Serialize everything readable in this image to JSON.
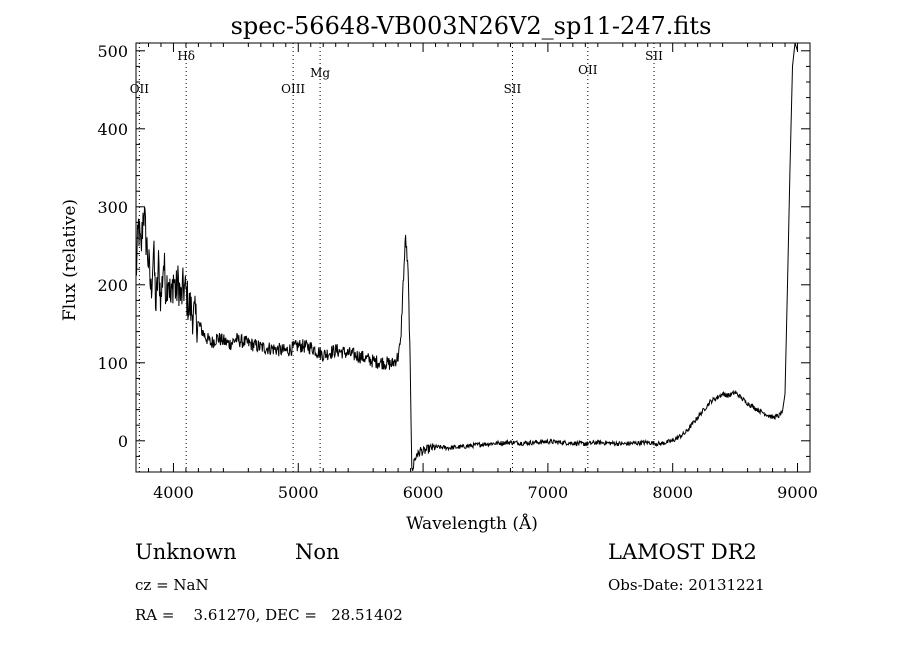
{
  "chart_data": {
    "type": "line",
    "title": "spec-56648-VB003N26V2_sp11-247.fits",
    "xlabel": "Wavelength (Å)",
    "ylabel": "Flux (relative)",
    "xlim": [
      3700,
      9100
    ],
    "ylim": [
      -40,
      510
    ],
    "xticks": [
      4000,
      5000,
      6000,
      7000,
      8000,
      9000
    ],
    "yticks": [
      0,
      100,
      200,
      300,
      400,
      500
    ],
    "grid": false,
    "line_color": "#000000",
    "lines": [
      {
        "label": "OII",
        "x": 3727
      },
      {
        "label": "Hδ",
        "x": 4102
      },
      {
        "label": "OIII",
        "x": 4959
      },
      {
        "label": "Mg",
        "x": 5175
      },
      {
        "label": "SII",
        "x": 6716
      },
      {
        "label": "OII",
        "x": 7320
      },
      {
        "label": "SII",
        "x": 7850
      }
    ],
    "series": [
      {
        "x": [
          3700,
          3720,
          3740,
          3760,
          3780,
          3800,
          3820,
          3840,
          3860,
          3880,
          3900,
          3920,
          3940,
          3960,
          3980,
          4000,
          4020,
          4040,
          4060,
          4080,
          4100,
          4120,
          4150,
          4200,
          4250,
          4300,
          4350,
          4400,
          4450,
          4500,
          4600,
          4700,
          4800,
          4900,
          5000,
          5100,
          5200,
          5300,
          5400,
          5500,
          5600,
          5700,
          5750,
          5800,
          5820,
          5840,
          5860,
          5880,
          5890,
          5900,
          5910,
          5920,
          5930,
          5940,
          5950,
          5960,
          5980,
          6000,
          6050,
          6100,
          6200,
          6300,
          6400,
          6500,
          6600,
          6700,
          6800,
          6900,
          7000,
          7100,
          7200,
          7300,
          7400,
          7500,
          7600,
          7700,
          7800,
          7900,
          8000,
          8100,
          8200,
          8300,
          8400,
          8450,
          8500,
          8600,
          8700,
          8800,
          8850,
          8880,
          8900,
          8920,
          8940,
          8960,
          8980,
          9000
        ],
        "y": [
          210,
          275,
          240,
          300,
          260,
          230,
          190,
          245,
          170,
          225,
          180,
          230,
          195,
          215,
          175,
          210,
          190,
          205,
          180,
          198,
          190,
          175,
          165,
          150,
          135,
          125,
          132,
          128,
          124,
          130,
          125,
          120,
          118,
          115,
          122,
          120,
          110,
          116,
          112,
          108,
          102,
          100,
          98,
          108,
          125,
          200,
          262,
          215,
          150,
          60,
          -30,
          -40,
          -20,
          -25,
          -15,
          -18,
          -12,
          -14,
          -10,
          -8,
          -9,
          -8,
          -6,
          -4,
          -3,
          -2,
          -3,
          -2,
          -1,
          -2,
          -3,
          -4,
          -2,
          -3,
          -4,
          -3,
          -2,
          -4,
          0,
          10,
          30,
          50,
          60,
          58,
          62,
          48,
          38,
          30,
          32,
          38,
          60,
          200,
          350,
          480,
          510,
          500
        ]
      }
    ]
  },
  "info": {
    "class_label": "Unknown",
    "subclass_label": "Non",
    "survey": "LAMOST DR2",
    "cz": "cz = NaN",
    "obs_date": "Obs-Date: 20131221",
    "coords": "RA =    3.61270, DEC =   28.51402"
  }
}
